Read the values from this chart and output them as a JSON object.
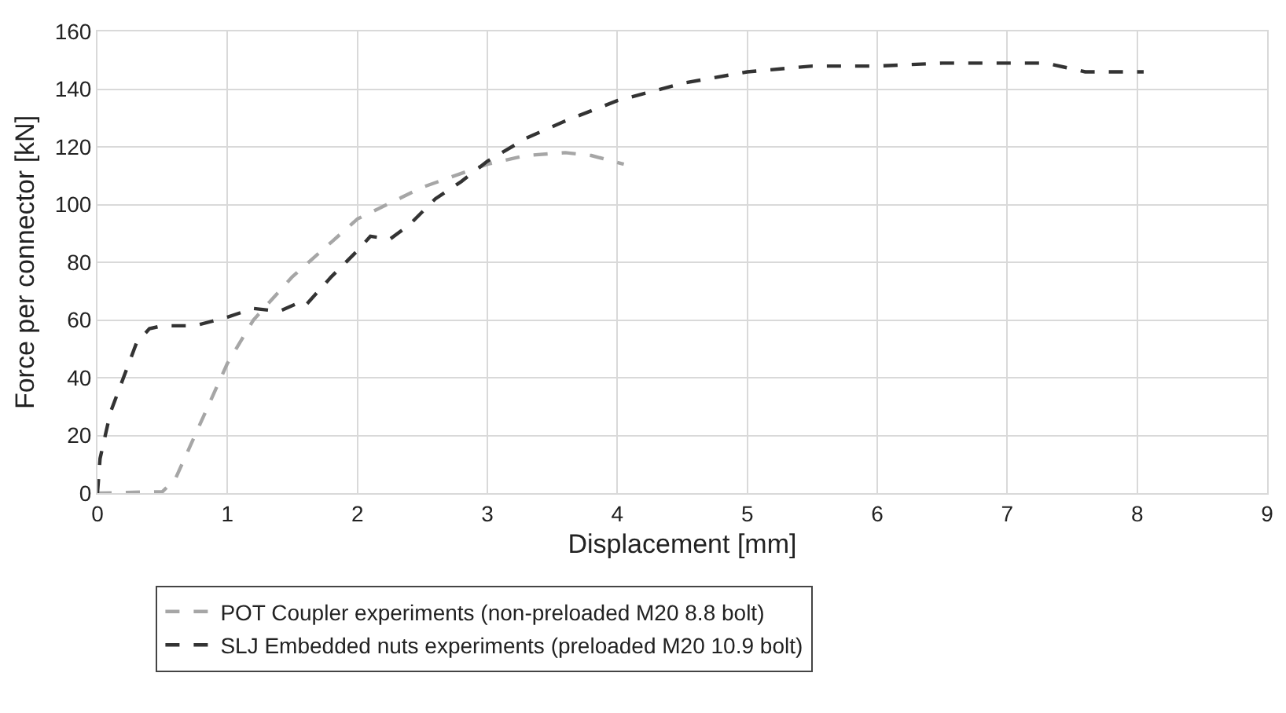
{
  "chart_data": {
    "type": "line",
    "xlabel": "Displacement [mm]",
    "ylabel": "Force per connector [kN]",
    "xlim": [
      0,
      9
    ],
    "xticks": [
      0,
      1,
      2,
      3,
      4,
      5,
      6,
      7,
      8,
      9
    ],
    "ylim": [
      0,
      160
    ],
    "yticks": [
      0,
      20,
      40,
      60,
      80,
      100,
      120,
      140,
      160
    ],
    "grid": true,
    "legend": "bottom",
    "line_style": "dashed",
    "marker": "none",
    "series": [
      {
        "name": "POT Coupler experiments (non-preloaded M20 8.8 bolt)",
        "color": "#a6a6a6",
        "x": [
          0,
          0.5,
          0.6,
          0.8,
          1,
          1.2,
          1.5,
          1.8,
          2,
          2.5,
          3,
          3.3,
          3.6,
          3.8,
          4.05
        ],
        "values": [
          0,
          0.5,
          5,
          25,
          45,
          60,
          75,
          87,
          95,
          106,
          114,
          117,
          118,
          117,
          114
        ]
      },
      {
        "name": "SLJ Embedded nuts experiments (preloaded M20 10.9 bolt)",
        "color": "#333333",
        "x": [
          0,
          0.02,
          0.1,
          0.2,
          0.3,
          0.4,
          0.5,
          0.75,
          1,
          1.2,
          1.4,
          1.55,
          1.6,
          1.8,
          2,
          2.1,
          2.25,
          2.4,
          2.6,
          2.8,
          3,
          3.3,
          3.6,
          4,
          4.5,
          5,
          5.5,
          6,
          6.5,
          7,
          7.3,
          7.6,
          8.05
        ],
        "values": [
          0,
          12,
          28,
          40,
          52,
          57,
          58,
          58,
          61,
          64,
          63,
          66,
          65,
          75,
          84,
          89,
          88,
          93,
          102,
          108,
          115,
          123,
          129,
          136,
          142,
          146,
          148,
          148,
          149,
          149,
          149,
          146,
          146
        ]
      }
    ]
  }
}
